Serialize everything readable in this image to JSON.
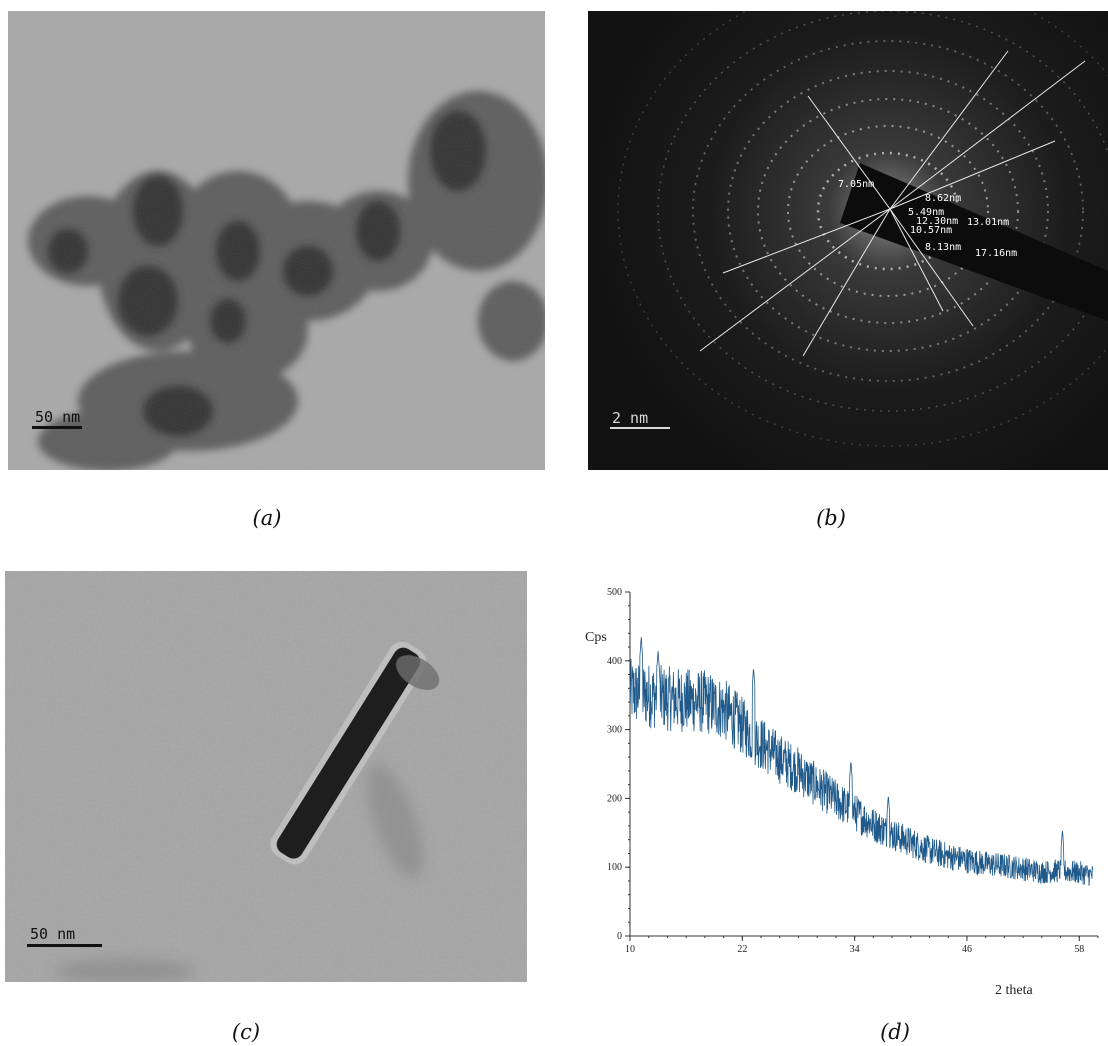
{
  "panels": {
    "a": {
      "caption": "(a)",
      "scale_bar": "50 nm"
    },
    "b": {
      "caption": "(b)",
      "scale_bar": "2 nm",
      "d_spacings": [
        "7.05nm",
        "8.62nm",
        "5.49nm",
        "12.30nm",
        "13.01nm",
        "10.57nm",
        "8.13nm",
        "17.16nm"
      ]
    },
    "c": {
      "caption": "(c)",
      "scale_bar": "50 nm"
    },
    "d": {
      "caption": "(d)"
    }
  },
  "chart_data": {
    "type": "line",
    "ylabel": "Cps",
    "xlabel": "2 theta",
    "xlim": [
      10,
      60
    ],
    "ylim": [
      0,
      500
    ],
    "x_ticks": [
      "10",
      "22",
      "34",
      "46",
      "58"
    ],
    "y_ticks": [
      "0",
      "100",
      "200",
      "300",
      "400",
      "500"
    ],
    "line_color": "#1f5a8a",
    "trend_points": [
      {
        "x": 10,
        "y": 355
      },
      {
        "x": 14,
        "y": 345
      },
      {
        "x": 18,
        "y": 340
      },
      {
        "x": 20,
        "y": 330
      },
      {
        "x": 22,
        "y": 305
      },
      {
        "x": 24,
        "y": 280
      },
      {
        "x": 26,
        "y": 258
      },
      {
        "x": 28,
        "y": 240
      },
      {
        "x": 30,
        "y": 218
      },
      {
        "x": 32,
        "y": 198
      },
      {
        "x": 34,
        "y": 180
      },
      {
        "x": 36,
        "y": 162
      },
      {
        "x": 38,
        "y": 148
      },
      {
        "x": 40,
        "y": 136
      },
      {
        "x": 42,
        "y": 124
      },
      {
        "x": 44,
        "y": 116
      },
      {
        "x": 46,
        "y": 110
      },
      {
        "x": 48,
        "y": 105
      },
      {
        "x": 50,
        "y": 102
      },
      {
        "x": 52,
        "y": 98
      },
      {
        "x": 54,
        "y": 93
      },
      {
        "x": 56,
        "y": 95
      },
      {
        "x": 58,
        "y": 92
      },
      {
        "x": 59.5,
        "y": 88
      }
    ],
    "peaks": [
      {
        "x": 11.2,
        "y": 435
      },
      {
        "x": 13.0,
        "y": 415
      },
      {
        "x": 23.2,
        "y": 390
      },
      {
        "x": 33.6,
        "y": 255
      },
      {
        "x": 37.6,
        "y": 205
      },
      {
        "x": 56.2,
        "y": 155
      }
    ]
  }
}
